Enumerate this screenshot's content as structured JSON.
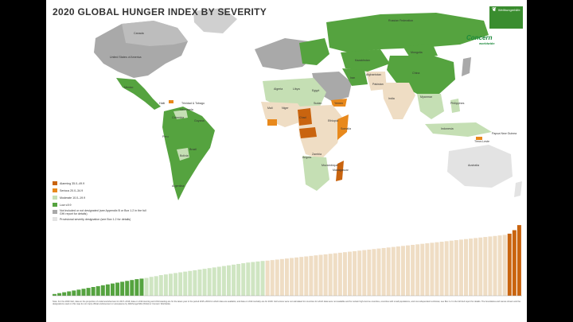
{
  "title": "2020 GLOBAL HUNGER INDEX BY SEVERITY",
  "logos": {
    "whh_name": "Welthungerhilfe",
    "concern_name": "Concern",
    "concern_sub": "worldwide"
  },
  "colors": {
    "alarming": "#c9640f",
    "serious": "#e8891c",
    "moderate": "#c5dfb4",
    "low": "#55a33f",
    "insufficient": "#a9a9a9",
    "no_data": "#e3e3e3",
    "ocean": "#ffffff",
    "serious_bar": "#efddc4",
    "moderate_bar": "#cfe5c2"
  },
  "legend": [
    {
      "key": "alarming",
      "label": "Alarming 35.0–49.9"
    },
    {
      "key": "serious",
      "label": "Serious 20.0–34.9"
    },
    {
      "key": "moderate",
      "label": "Moderate 10.0–19.9"
    },
    {
      "key": "low",
      "label": "Low ≤9.9"
    },
    {
      "key": "insufficient",
      "label": "Not included or not designated (see Appendix B or Box 1.2 in the full GHI report for details)"
    },
    {
      "key": "no_data",
      "label": "Provisional severity designation (see Box 1.2 for details)"
    }
  ],
  "map_labels": [
    "Russian Federation",
    "United States of America",
    "Canada",
    "Mexico",
    "Brazil",
    "Argentina",
    "Peru",
    "Bolivia",
    "Colombia",
    "Venezuela",
    "India",
    "China",
    "Kazakhstan",
    "Mongolia",
    "Indonesia",
    "Australia",
    "Sudan",
    "Chad",
    "Niger",
    "Mali",
    "Madagascar",
    "Yemen",
    "Mozambique",
    "Angola",
    "Zambia",
    "Libya",
    "Algeria",
    "Egypt",
    "Iran",
    "Pakistan",
    "Afghanistan",
    "Myanmar",
    "Philippines",
    "Ethiopia",
    "Somalia",
    "Trinidad & Tobago",
    "Timor-Leste",
    "Papua New Guinea",
    "Haiti",
    "Guyana"
  ],
  "chart_data": {
    "type": "bar",
    "title": "2020 GLOBAL HUNGER INDEX BY SEVERITY",
    "ylim": [
      0,
      50
    ],
    "values": [
      1,
      1.5,
      2,
      2.5,
      3,
      3.5,
      4,
      4.5,
      5,
      5.5,
      6,
      6.5,
      7,
      7.5,
      8,
      8.5,
      9,
      9.5,
      9.8,
      10.2,
      10.8,
      11.2,
      11.8,
      12.2,
      12.6,
      13,
      13.4,
      13.8,
      14.2,
      14.6,
      15,
      15.4,
      15.8,
      16.2,
      16.6,
      17,
      17.4,
      17.8,
      18.2,
      18.6,
      19,
      19.3,
      19.6,
      19.9,
      20.1,
      20.4,
      20.7,
      21,
      21.3,
      21.6,
      21.9,
      22.2,
      22.5,
      22.8,
      23.1,
      23.4,
      23.7,
      24,
      24.3,
      24.6,
      24.9,
      25.2,
      25.5,
      25.8,
      26.1,
      26.4,
      26.7,
      27,
      27.3,
      27.6,
      27.9,
      28.2,
      28.5,
      28.8,
      29.1,
      29.4,
      29.7,
      30,
      30.3,
      30.6,
      30.9,
      31.2,
      31.5,
      31.8,
      32.1,
      32.4,
      32.7,
      33,
      33.3,
      33.6,
      33.9,
      34.2,
      34.5,
      34.8,
      35.5,
      37.5,
      40.4
    ]
  },
  "footnote": "Note: For the 2020 GHI, data on the proportion of undernourished are for 2017–2019; data on child stunting and child wasting are for the latest year in the period 2015–2019 for which data are available; and data on child mortality are for 2018. GHI scores were not calculated for countries for which data were not available and for certain high-income countries, countries with small populations, and non-independent territories; see Box 1.2 in the full GHI report for details. The boundaries and names shown and the designations used on this map do not imply official endorsement or acceptance by Welthungerhilfe (WHH) or Concern Worldwide."
}
